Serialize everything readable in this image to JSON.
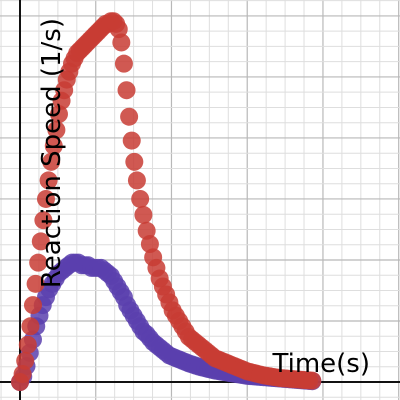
{
  "chart_data": {
    "type": "scatter",
    "xlabel": "Time(s)",
    "ylabel": "Reaction Speed (1/s)",
    "grid": true,
    "legend": "none",
    "xlim": [
      0,
      1.17
    ],
    "ylim": [
      -0.035,
      1.44
    ],
    "series": [
      {
        "color": "#c83c34",
        "x": [
          0.0,
          0.008,
          0.016,
          0.024,
          0.032,
          0.04,
          0.048,
          0.056,
          0.064,
          0.072,
          0.08,
          0.088,
          0.096,
          0.104,
          0.112,
          0.12,
          0.128,
          0.136,
          0.144,
          0.152,
          0.16,
          0.168,
          0.176,
          0.184,
          0.192,
          0.2,
          0.208,
          0.216,
          0.224,
          0.232,
          0.24,
          0.248,
          0.256,
          0.264,
          0.272,
          0.28,
          0.288,
          0.296,
          0.304,
          0.312,
          0.32,
          0.328,
          0.336,
          0.344,
          0.352,
          0.36,
          0.37,
          0.38,
          0.39,
          0.4,
          0.41,
          0.42,
          0.43,
          0.44,
          0.45,
          0.46,
          0.47,
          0.48,
          0.49,
          0.5,
          0.51,
          0.52,
          0.53,
          0.54,
          0.55,
          0.56,
          0.57,
          0.58,
          0.59,
          0.6,
          0.61,
          0.62,
          0.63,
          0.64,
          0.65,
          0.66,
          0.67,
          0.68,
          0.69,
          0.7,
          0.71,
          0.72,
          0.73,
          0.74,
          0.75,
          0.76,
          0.77,
          0.78,
          0.79,
          0.8,
          0.81,
          0.82,
          0.83,
          0.84,
          0.85,
          0.86,
          0.87,
          0.88,
          0.89,
          0.9
        ],
        "y": [
          0.0,
          0.03,
          0.08,
          0.14,
          0.21,
          0.29,
          0.37,
          0.45,
          0.53,
          0.61,
          0.69,
          0.76,
          0.83,
          0.89,
          0.95,
          1.01,
          1.06,
          1.1,
          1.14,
          1.17,
          1.2,
          1.22,
          1.24,
          1.25,
          1.26,
          1.27,
          1.28,
          1.29,
          1.3,
          1.31,
          1.32,
          1.33,
          1.34,
          1.35,
          1.35,
          1.36,
          1.36,
          1.35,
          1.33,
          1.28,
          1.2,
          1.1,
          1.0,
          0.91,
          0.83,
          0.76,
          0.69,
          0.63,
          0.57,
          0.52,
          0.47,
          0.43,
          0.39,
          0.36,
          0.33,
          0.3,
          0.27,
          0.25,
          0.23,
          0.21,
          0.19,
          0.17,
          0.16,
          0.15,
          0.14,
          0.13,
          0.12,
          0.11,
          0.1,
          0.09,
          0.085,
          0.08,
          0.075,
          0.07,
          0.065,
          0.06,
          0.055,
          0.05,
          0.045,
          0.04,
          0.037,
          0.034,
          0.031,
          0.028,
          0.025,
          0.023,
          0.021,
          0.019,
          0.017,
          0.015,
          0.014,
          0.013,
          0.012,
          0.011,
          0.01,
          0.009,
          0.008,
          0.007,
          0.006,
          0.005
        ]
      },
      {
        "color": "#5b3fae",
        "x": [
          0.0,
          0.01,
          0.02,
          0.03,
          0.04,
          0.05,
          0.06,
          0.07,
          0.08,
          0.09,
          0.1,
          0.11,
          0.12,
          0.13,
          0.14,
          0.15,
          0.16,
          0.17,
          0.18,
          0.19,
          0.2,
          0.21,
          0.22,
          0.23,
          0.24,
          0.25,
          0.26,
          0.27,
          0.28,
          0.29,
          0.3,
          0.31,
          0.32,
          0.33,
          0.34,
          0.35,
          0.36,
          0.37,
          0.38,
          0.39,
          0.4,
          0.41,
          0.42,
          0.43,
          0.44,
          0.45,
          0.46,
          0.47,
          0.48,
          0.49,
          0.5,
          0.51,
          0.52,
          0.53,
          0.54,
          0.55,
          0.56,
          0.57,
          0.58,
          0.59,
          0.6,
          0.61,
          0.62,
          0.63,
          0.64,
          0.65,
          0.66,
          0.67,
          0.68,
          0.69,
          0.7,
          0.71,
          0.72,
          0.73,
          0.74,
          0.75,
          0.76,
          0.77,
          0.78,
          0.79,
          0.8,
          0.81,
          0.82,
          0.83,
          0.84,
          0.85,
          0.86,
          0.87,
          0.88,
          0.89,
          0.9
        ],
        "y": [
          0.0,
          0.02,
          0.06,
          0.11,
          0.16,
          0.21,
          0.25,
          0.29,
          0.32,
          0.35,
          0.37,
          0.39,
          0.41,
          0.42,
          0.43,
          0.44,
          0.45,
          0.45,
          0.45,
          0.44,
          0.44,
          0.44,
          0.43,
          0.43,
          0.43,
          0.43,
          0.42,
          0.41,
          0.4,
          0.38,
          0.36,
          0.34,
          0.32,
          0.29,
          0.27,
          0.25,
          0.23,
          0.21,
          0.19,
          0.18,
          0.165,
          0.15,
          0.14,
          0.13,
          0.12,
          0.11,
          0.1,
          0.095,
          0.09,
          0.085,
          0.08,
          0.075,
          0.07,
          0.066,
          0.062,
          0.058,
          0.055,
          0.052,
          0.049,
          0.046,
          0.043,
          0.041,
          0.039,
          0.037,
          0.035,
          0.033,
          0.031,
          0.029,
          0.027,
          0.025,
          0.023,
          0.022,
          0.021,
          0.02,
          0.019,
          0.018,
          0.017,
          0.016,
          0.015,
          0.014,
          0.013,
          0.012,
          0.011,
          0.01,
          0.009,
          0.008,
          0.007,
          0.006,
          0.005,
          0.004,
          0.003
        ]
      }
    ]
  }
}
